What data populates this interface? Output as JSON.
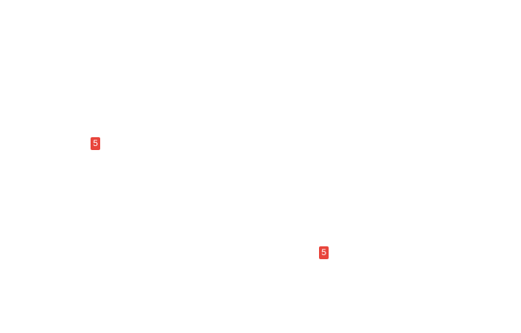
{
  "page": {
    "background": "#ffffff"
  },
  "badges": [
    {
      "value": "5",
      "color": "#e8453c",
      "text_color": "#ffffff"
    },
    {
      "value": "5",
      "color": "#e8453c",
      "text_color": "#ffffff"
    }
  ]
}
